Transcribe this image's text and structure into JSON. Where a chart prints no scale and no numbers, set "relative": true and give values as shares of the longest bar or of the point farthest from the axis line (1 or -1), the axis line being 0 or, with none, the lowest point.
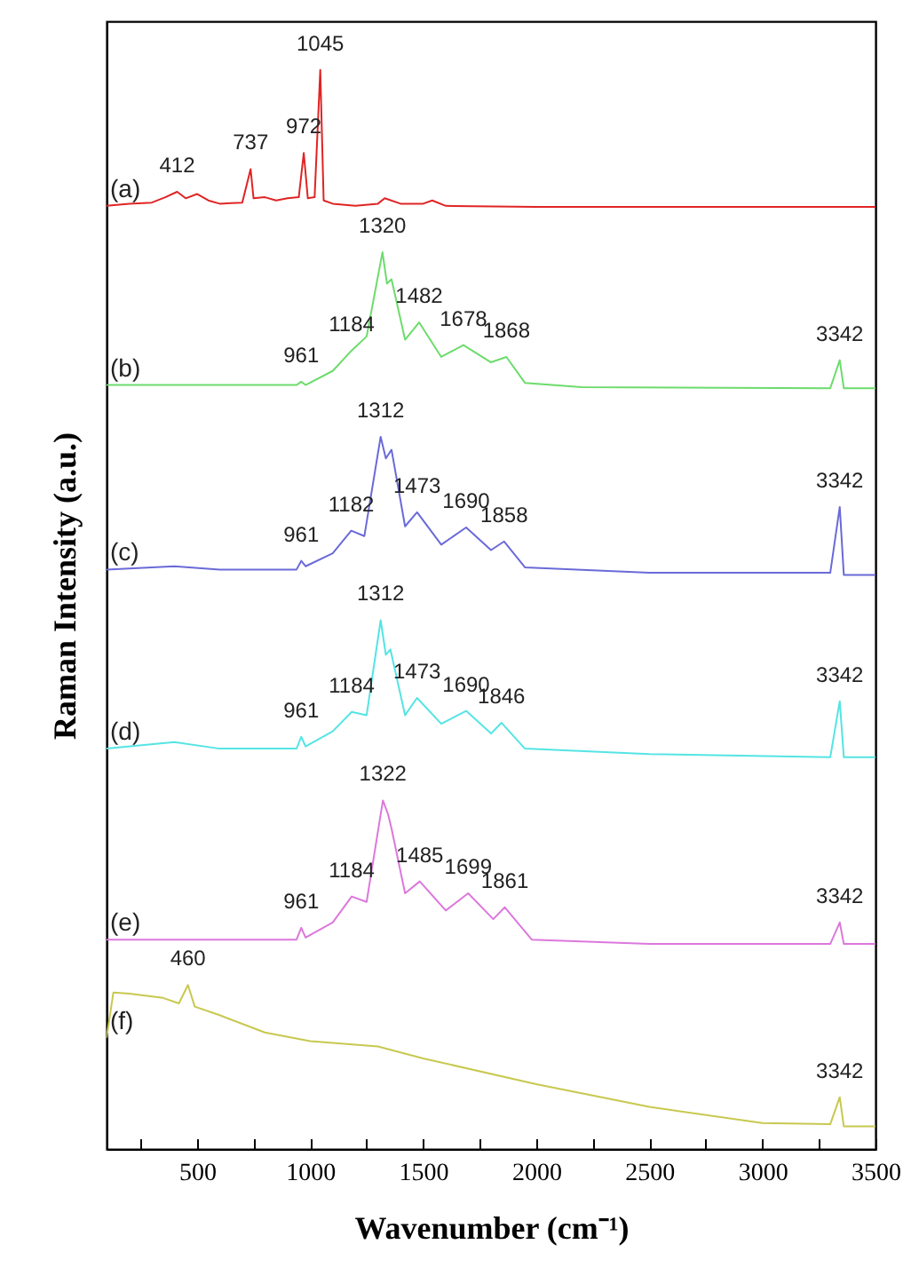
{
  "chart_data": {
    "type": "line",
    "relative": true,
    "xlabel": "Wavenumber (cm⁻¹)",
    "ylabel": "Raman Intensity (a.u.)",
    "xlim": [
      100,
      3500
    ],
    "xticks": [
      {
        "value": 250,
        "label": null
      },
      500,
      {
        "value": 750,
        "label": null
      },
      1000,
      {
        "value": 1250,
        "label": null
      },
      1500,
      {
        "value": 1750,
        "label": null
      },
      2000,
      {
        "value": 2250,
        "label": null
      },
      2500,
      {
        "value": 2750,
        "label": null
      },
      3000,
      {
        "value": 3250,
        "label": null
      },
      3500
    ],
    "grid": false,
    "series": [
      {
        "name": "(a)",
        "color": "#e02424",
        "x": [
          100,
          200,
          300,
          360,
          412,
          450,
          500,
          550,
          600,
          700,
          737,
          750,
          800,
          850,
          900,
          950,
          972,
          990,
          1020,
          1045,
          1060,
          1100,
          1200,
          1300,
          1330,
          1400,
          1500,
          1540,
          1600,
          2000,
          2500,
          3000,
          3500
        ],
        "values": [
          0.874,
          0.876,
          0.877,
          0.882,
          0.887,
          0.881,
          0.885,
          0.879,
          0.876,
          0.877,
          0.908,
          0.881,
          0.882,
          0.879,
          0.881,
          0.882,
          0.923,
          0.881,
          0.882,
          1.0,
          0.879,
          0.876,
          0.874,
          0.876,
          0.881,
          0.876,
          0.876,
          0.879,
          0.874,
          0.873,
          0.873,
          0.873,
          0.873
        ]
      },
      {
        "name": "(b)",
        "color": "#6cdc6c",
        "x": [
          100,
          600,
          940,
          961,
          980,
          1100,
          1184,
          1250,
          1320,
          1340,
          1360,
          1420,
          1482,
          1580,
          1678,
          1800,
          1868,
          1950,
          2200,
          3300,
          3342,
          3360,
          3500
        ],
        "values": [
          0.708,
          0.708,
          0.708,
          0.711,
          0.708,
          0.721,
          0.74,
          0.753,
          0.831,
          0.802,
          0.806,
          0.75,
          0.766,
          0.734,
          0.745,
          0.729,
          0.734,
          0.71,
          0.706,
          0.705,
          0.731,
          0.705,
          0.705
        ]
      },
      {
        "name": "(c)",
        "color": "#6a6ad8",
        "x": [
          100,
          400,
          600,
          940,
          961,
          980,
          1100,
          1182,
          1240,
          1312,
          1335,
          1360,
          1420,
          1473,
          1580,
          1690,
          1800,
          1858,
          1950,
          2500,
          3300,
          3342,
          3360,
          3500
        ],
        "values": [
          0.537,
          0.54,
          0.537,
          0.537,
          0.545,
          0.54,
          0.552,
          0.573,
          0.568,
          0.66,
          0.64,
          0.648,
          0.577,
          0.59,
          0.56,
          0.576,
          0.555,
          0.563,
          0.539,
          0.534,
          0.534,
          0.595,
          0.532,
          0.532
        ]
      },
      {
        "name": "(d)",
        "color": "#55e4e4",
        "x": [
          100,
          400,
          600,
          940,
          961,
          980,
          1100,
          1184,
          1250,
          1312,
          1335,
          1355,
          1420,
          1473,
          1580,
          1690,
          1800,
          1846,
          1950,
          2500,
          3300,
          3342,
          3360,
          3500
        ],
        "values": [
          0.371,
          0.377,
          0.371,
          0.371,
          0.382,
          0.373,
          0.387,
          0.405,
          0.402,
          0.49,
          0.458,
          0.463,
          0.402,
          0.418,
          0.394,
          0.406,
          0.385,
          0.395,
          0.371,
          0.366,
          0.363,
          0.415,
          0.363,
          0.363
        ]
      },
      {
        "name": "(e)",
        "color": "#dc78dc",
        "x": [
          100,
          600,
          940,
          961,
          980,
          1100,
          1184,
          1250,
          1322,
          1345,
          1360,
          1420,
          1485,
          1600,
          1699,
          1810,
          1861,
          1980,
          2500,
          3300,
          3342,
          3360,
          3500
        ],
        "values": [
          0.194,
          0.194,
          0.194,
          0.205,
          0.196,
          0.21,
          0.234,
          0.229,
          0.323,
          0.31,
          0.297,
          0.237,
          0.248,
          0.221,
          0.237,
          0.213,
          0.224,
          0.194,
          0.19,
          0.19,
          0.21,
          0.19,
          0.19
        ]
      },
      {
        "name": "(f)",
        "color": "#c8c850",
        "x": [
          100,
          130,
          200,
          350,
          420,
          460,
          490,
          600,
          800,
          1000,
          1300,
          1500,
          2000,
          2500,
          3000,
          3300,
          3342,
          3360,
          3500
        ],
        "values": [
          0.103,
          0.145,
          0.144,
          0.14,
          0.135,
          0.152,
          0.132,
          0.124,
          0.108,
          0.1,
          0.095,
          0.084,
          0.06,
          0.039,
          0.024,
          0.023,
          0.048,
          0.021,
          0.021
        ]
      }
    ],
    "annotations": [
      {
        "text": "412",
        "x": 412,
        "y": 0.887
      },
      {
        "text": "737",
        "x": 737,
        "y": 0.908
      },
      {
        "text": "972",
        "x": 972,
        "y": 0.923
      },
      {
        "text": "1045",
        "x": 1045,
        "y": 1.0
      },
      {
        "text": "961",
        "x": 961,
        "y": 0.711
      },
      {
        "text": "1184",
        "x": 1184,
        "y": 0.74
      },
      {
        "text": "1320",
        "x": 1320,
        "y": 0.831
      },
      {
        "text": "1482",
        "x": 1482,
        "y": 0.766
      },
      {
        "text": "1678",
        "x": 1678,
        "y": 0.745
      },
      {
        "text": "1868",
        "x": 1868,
        "y": 0.734
      },
      {
        "text": "3342",
        "x": 3342,
        "y": 0.731
      },
      {
        "text": "961",
        "x": 961,
        "y": 0.545
      },
      {
        "text": "1182",
        "x": 1182,
        "y": 0.573
      },
      {
        "text": "1312",
        "x": 1312,
        "y": 0.66
      },
      {
        "text": "1473",
        "x": 1473,
        "y": 0.59
      },
      {
        "text": "1690",
        "x": 1690,
        "y": 0.576
      },
      {
        "text": "1858",
        "x": 1858,
        "y": 0.563
      },
      {
        "text": "3342",
        "x": 3342,
        "y": 0.595
      },
      {
        "text": "961",
        "x": 961,
        "y": 0.382
      },
      {
        "text": "1184",
        "x": 1184,
        "y": 0.405
      },
      {
        "text": "1312",
        "x": 1312,
        "y": 0.49
      },
      {
        "text": "1473",
        "x": 1473,
        "y": 0.418
      },
      {
        "text": "1690",
        "x": 1690,
        "y": 0.406
      },
      {
        "text": "1846",
        "x": 1846,
        "y": 0.395
      },
      {
        "text": "3342",
        "x": 3342,
        "y": 0.415
      },
      {
        "text": "961",
        "x": 961,
        "y": 0.205
      },
      {
        "text": "1184",
        "x": 1184,
        "y": 0.234
      },
      {
        "text": "1322",
        "x": 1322,
        "y": 0.323
      },
      {
        "text": "1485",
        "x": 1485,
        "y": 0.248
      },
      {
        "text": "1699",
        "x": 1699,
        "y": 0.237
      },
      {
        "text": "1861",
        "x": 1861,
        "y": 0.224
      },
      {
        "text": "3342",
        "x": 3342,
        "y": 0.21
      },
      {
        "text": "460",
        "x": 460,
        "y": 0.152
      },
      {
        "text": "3342",
        "x": 3342,
        "y": 0.048
      }
    ]
  }
}
